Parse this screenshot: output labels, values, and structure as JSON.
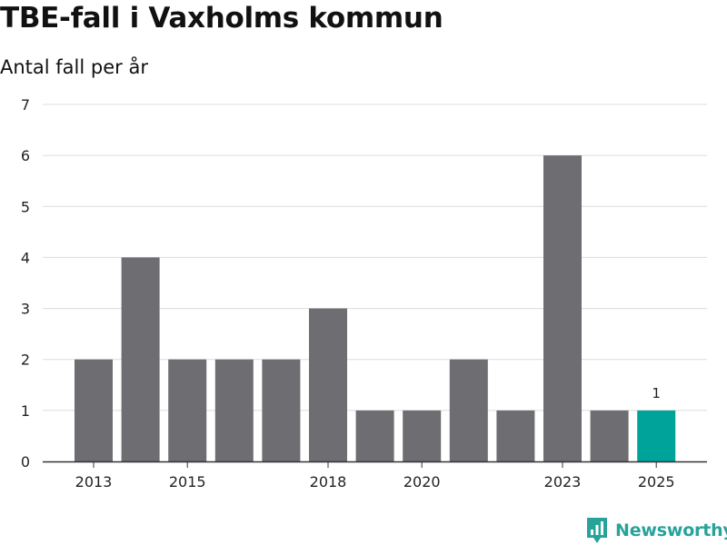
{
  "title": "TBE-fall i Vaxholms kommun",
  "subtitle": "Antal fall per år",
  "brand": {
    "name": "Newsworthy",
    "icon": "newsworthy-logo-icon",
    "color": "#27a39a"
  },
  "chart_data": {
    "type": "bar",
    "categories": [
      "2013",
      "2014",
      "2015",
      "2016",
      "2017",
      "2018",
      "2019",
      "2020",
      "2021",
      "2022",
      "2023",
      "2024",
      "2025"
    ],
    "values": [
      2,
      4,
      2,
      2,
      2,
      3,
      1,
      1,
      2,
      1,
      6,
      1,
      1
    ],
    "x_tick_labels": [
      "2013",
      "2015",
      "2018",
      "2020",
      "2023",
      "2025"
    ],
    "y_ticks": [
      0,
      1,
      2,
      3,
      4,
      5,
      6,
      7
    ],
    "ylim": [
      0,
      7
    ],
    "grid": true,
    "bar_color": "#6d6d72",
    "highlight_color": "#00a39a",
    "highlight_category": "2025",
    "data_labels": [
      {
        "category": "2025",
        "text": "1"
      }
    ],
    "xlabel": "",
    "ylabel": ""
  }
}
